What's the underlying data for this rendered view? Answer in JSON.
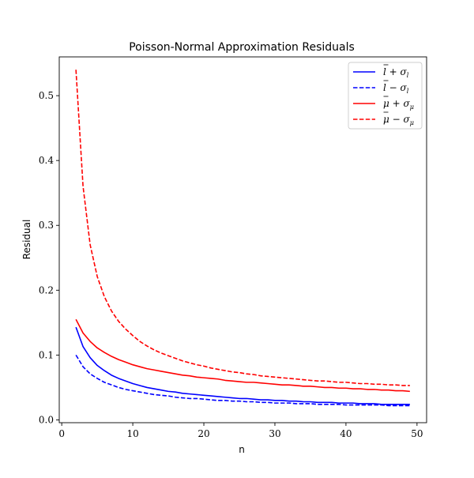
{
  "chart_data": {
    "type": "line",
    "title": "Poisson-Normal Approximation Residuals",
    "xlabel": "n",
    "ylabel": "Residual",
    "xlim": [
      -0.35,
      51.35
    ],
    "ylim": [
      -0.0043,
      0.5598
    ],
    "xticks": [
      0,
      10,
      20,
      30,
      40,
      50
    ],
    "xtick_labels": [
      "0",
      "10",
      "20",
      "30",
      "40",
      "50"
    ],
    "yticks": [
      0.0,
      0.1,
      0.2,
      0.3,
      0.4,
      0.5
    ],
    "ytick_labels": [
      "0.0",
      "0.1",
      "0.2",
      "0.3",
      "0.4",
      "0.5"
    ],
    "grid": false,
    "legend_position": "top-right",
    "x": [
      2,
      3,
      4,
      5,
      6,
      7,
      8,
      9,
      10,
      11,
      12,
      13,
      14,
      15,
      16,
      17,
      18,
      19,
      20,
      21,
      22,
      23,
      24,
      25,
      26,
      27,
      28,
      29,
      30,
      31,
      32,
      33,
      34,
      35,
      36,
      37,
      38,
      39,
      40,
      41,
      42,
      43,
      44,
      45,
      46,
      47,
      48,
      49
    ],
    "series": [
      {
        "name": "l̄ + σ_l",
        "color": "#0000ff",
        "linestyle": "solid",
        "values": [
          0.143,
          0.113,
          0.096,
          0.084,
          0.076,
          0.069,
          0.064,
          0.06,
          0.056,
          0.053,
          0.05,
          0.048,
          0.046,
          0.044,
          0.043,
          0.041,
          0.04,
          0.039,
          0.038,
          0.037,
          0.036,
          0.035,
          0.034,
          0.033,
          0.033,
          0.032,
          0.031,
          0.031,
          0.03,
          0.03,
          0.029,
          0.029,
          0.028,
          0.028,
          0.027,
          0.027,
          0.027,
          0.026,
          0.026,
          0.026,
          0.025,
          0.025,
          0.025,
          0.024,
          0.024,
          0.024,
          0.024,
          0.024
        ]
      },
      {
        "name": "l̄ − σ_l",
        "color": "#0000ff",
        "linestyle": "dashed",
        "values": [
          0.1,
          0.082,
          0.071,
          0.064,
          0.058,
          0.054,
          0.05,
          0.047,
          0.045,
          0.043,
          0.041,
          0.039,
          0.038,
          0.037,
          0.035,
          0.034,
          0.033,
          0.033,
          0.032,
          0.031,
          0.03,
          0.03,
          0.029,
          0.029,
          0.028,
          0.028,
          0.027,
          0.027,
          0.026,
          0.026,
          0.026,
          0.025,
          0.025,
          0.025,
          0.024,
          0.024,
          0.024,
          0.024,
          0.023,
          0.023,
          0.023,
          0.023,
          0.023,
          0.023,
          0.022,
          0.022,
          0.022,
          0.022
        ]
      },
      {
        "name": "μ̄ + σ_μ",
        "color": "#ff0000",
        "linestyle": "solid",
        "values": [
          0.155,
          0.134,
          0.121,
          0.111,
          0.104,
          0.098,
          0.093,
          0.089,
          0.085,
          0.082,
          0.079,
          0.077,
          0.075,
          0.073,
          0.071,
          0.069,
          0.068,
          0.066,
          0.065,
          0.064,
          0.063,
          0.061,
          0.06,
          0.059,
          0.058,
          0.058,
          0.057,
          0.056,
          0.055,
          0.054,
          0.054,
          0.053,
          0.052,
          0.052,
          0.051,
          0.05,
          0.05,
          0.049,
          0.049,
          0.048,
          0.048,
          0.047,
          0.047,
          0.046,
          0.046,
          0.045,
          0.045,
          0.044
        ]
      },
      {
        "name": "μ̄ − σ_μ",
        "color": "#ff0000",
        "linestyle": "dashed",
        "values": [
          0.54,
          0.36,
          0.27,
          0.221,
          0.19,
          0.168,
          0.152,
          0.14,
          0.13,
          0.121,
          0.114,
          0.108,
          0.103,
          0.099,
          0.095,
          0.091,
          0.088,
          0.085,
          0.083,
          0.08,
          0.078,
          0.076,
          0.074,
          0.073,
          0.071,
          0.07,
          0.068,
          0.067,
          0.066,
          0.065,
          0.064,
          0.063,
          0.062,
          0.061,
          0.06,
          0.06,
          0.059,
          0.058,
          0.058,
          0.057,
          0.056,
          0.056,
          0.055,
          0.055,
          0.054,
          0.054,
          0.053,
          0.053
        ]
      }
    ],
    "legend_entries": [
      {
        "base": "l",
        "op": "+",
        "sub": "l"
      },
      {
        "base": "l",
        "op": "−",
        "sub": "l"
      },
      {
        "base": "μ",
        "op": "+",
        "sub": "μ"
      },
      {
        "base": "μ",
        "op": "−",
        "sub": "μ"
      }
    ]
  }
}
